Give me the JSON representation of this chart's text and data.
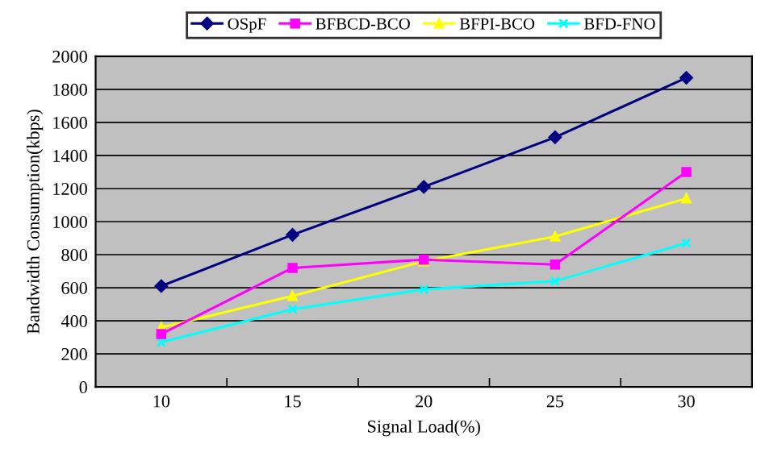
{
  "chart_data": {
    "type": "line",
    "xlabel": "Signal Load(%)",
    "ylabel": "Bandwidth Consumption(kbps)",
    "categories": [
      "10",
      "15",
      "20",
      "25",
      "30"
    ],
    "series": [
      {
        "name": "OSpF",
        "color": "#000080",
        "marker": "diamond",
        "values": [
          610,
          920,
          1210,
          1510,
          1870
        ]
      },
      {
        "name": "BFBCD-BCO",
        "color": "#ff00ff",
        "marker": "square",
        "values": [
          320,
          720,
          770,
          740,
          1300
        ]
      },
      {
        "name": "BFPI-BCO",
        "color": "#ffff00",
        "marker": "triangle",
        "values": [
          360,
          550,
          760,
          910,
          1140
        ]
      },
      {
        "name": "BFD-FNO",
        "color": "#00ffff",
        "marker": "cross",
        "values": [
          270,
          470,
          590,
          640,
          870
        ]
      }
    ],
    "ylim": [
      0,
      2000
    ],
    "yticks": [
      0,
      200,
      400,
      600,
      800,
      1000,
      1200,
      1400,
      1600,
      1800,
      2000
    ],
    "grid": "y",
    "legend": "top",
    "line_style": "solid"
  }
}
